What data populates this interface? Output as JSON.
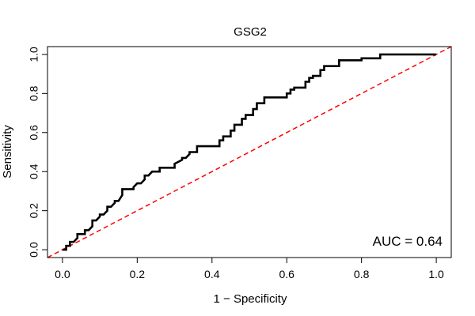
{
  "chart_data": {
    "type": "line",
    "title": "GSG2",
    "xlabel": "1 − Specificity",
    "ylabel": "Sensitivity",
    "xlim": [
      -0.04,
      1.04
    ],
    "ylim": [
      -0.04,
      1.04
    ],
    "xticks": [
      0.0,
      0.2,
      0.4,
      0.6,
      0.8,
      1.0
    ],
    "yticks": [
      0.0,
      0.2,
      0.4,
      0.6,
      0.8,
      1.0
    ],
    "xtick_labels": [
      "0.0",
      "0.2",
      "0.4",
      "0.6",
      "0.8",
      "1.0"
    ],
    "ytick_labels": [
      "0.0",
      "0.2",
      "0.4",
      "0.6",
      "0.8",
      "1.0"
    ],
    "grid": false,
    "annotation": "AUC = 0.64",
    "series": [
      {
        "color": "#000000",
        "line_style": "solid",
        "x": [
          0.0,
          0.01,
          0.01,
          0.02,
          0.02,
          0.03,
          0.04,
          0.04,
          0.05,
          0.06,
          0.06,
          0.07,
          0.08,
          0.08,
          0.09,
          0.1,
          0.1,
          0.11,
          0.12,
          0.12,
          0.13,
          0.14,
          0.14,
          0.15,
          0.16,
          0.16,
          0.19,
          0.19,
          0.2,
          0.21,
          0.22,
          0.22,
          0.23,
          0.24,
          0.24,
          0.26,
          0.26,
          0.3,
          0.3,
          0.32,
          0.32,
          0.33,
          0.34,
          0.34,
          0.36,
          0.36,
          0.42,
          0.42,
          0.43,
          0.43,
          0.45,
          0.45,
          0.46,
          0.46,
          0.48,
          0.48,
          0.49,
          0.49,
          0.51,
          0.51,
          0.52,
          0.52,
          0.54,
          0.54,
          0.6,
          0.6,
          0.61,
          0.61,
          0.62,
          0.62,
          0.65,
          0.65,
          0.66,
          0.66,
          0.67,
          0.67,
          0.69,
          0.69,
          0.7,
          0.7,
          0.74,
          0.74,
          0.8,
          0.8,
          0.85,
          0.85,
          1.0
        ],
        "y": [
          0.0,
          0.0,
          0.02,
          0.02,
          0.04,
          0.04,
          0.06,
          0.08,
          0.08,
          0.08,
          0.1,
          0.1,
          0.12,
          0.15,
          0.15,
          0.17,
          0.18,
          0.18,
          0.2,
          0.22,
          0.22,
          0.24,
          0.25,
          0.25,
          0.28,
          0.31,
          0.31,
          0.32,
          0.34,
          0.34,
          0.36,
          0.38,
          0.38,
          0.4,
          0.4,
          0.4,
          0.42,
          0.42,
          0.44,
          0.46,
          0.47,
          0.47,
          0.49,
          0.5,
          0.5,
          0.53,
          0.53,
          0.56,
          0.56,
          0.58,
          0.58,
          0.61,
          0.61,
          0.64,
          0.64,
          0.67,
          0.67,
          0.69,
          0.69,
          0.72,
          0.72,
          0.75,
          0.75,
          0.78,
          0.78,
          0.8,
          0.8,
          0.82,
          0.82,
          0.83,
          0.83,
          0.86,
          0.86,
          0.88,
          0.88,
          0.89,
          0.89,
          0.92,
          0.92,
          0.94,
          0.94,
          0.97,
          0.97,
          0.98,
          0.98,
          1.0,
          1.0
        ]
      },
      {
        "color": "#ff0000",
        "line_style": "dashed",
        "x": [
          -0.04,
          1.04
        ],
        "y": [
          -0.04,
          1.04
        ]
      }
    ]
  }
}
